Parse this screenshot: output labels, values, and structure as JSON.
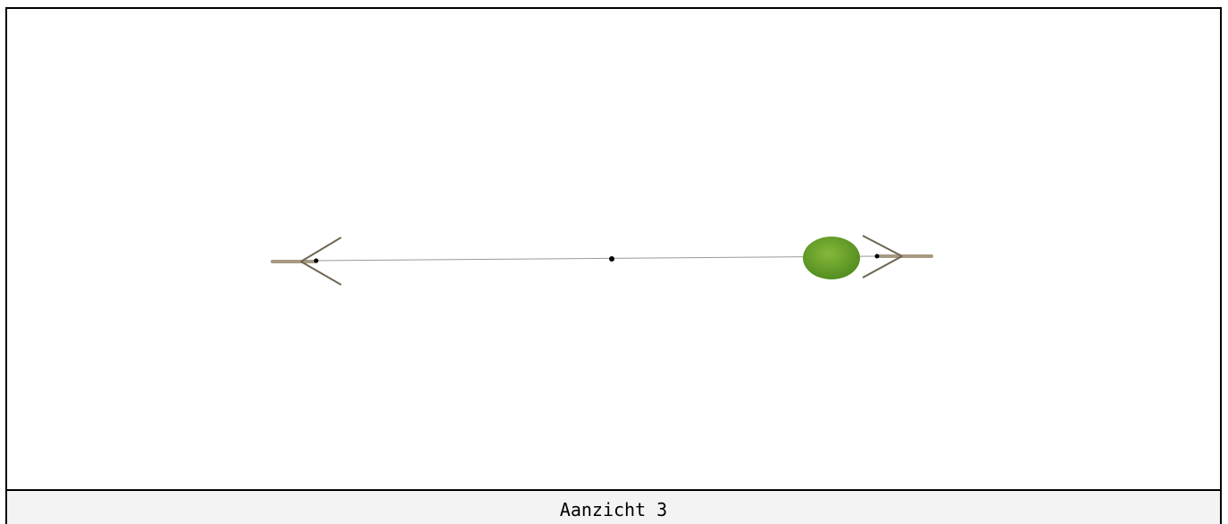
{
  "view": {
    "label": "Aanzicht 3"
  }
}
